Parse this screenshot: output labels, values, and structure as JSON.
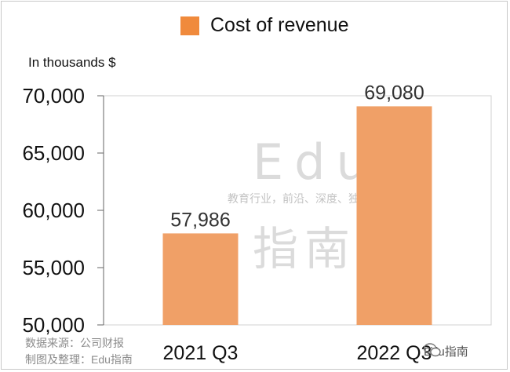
{
  "chart_data": {
    "type": "bar",
    "legend": [
      "Cost of revenue"
    ],
    "unit_label": "In thousands $",
    "categories": [
      "2021 Q3",
      "2022 Q3"
    ],
    "series": [
      {
        "name": "Cost of revenue",
        "values": [
          57986,
          69080
        ],
        "color": "#f0a067"
      }
    ],
    "data_labels": [
      "57,986",
      "69,080"
    ],
    "ylim": [
      50000,
      70000
    ],
    "yticks": [
      50000,
      55000,
      60000,
      65000,
      70000
    ],
    "ytick_labels": [
      "50,000",
      "55,000",
      "60,000",
      "65,000",
      "70,000"
    ],
    "legend_swatch_color": "#f08a3c",
    "grid": false,
    "legend_position": "top"
  },
  "watermark": {
    "big": "Edu",
    "sub": "教育行业，前沿、深度、独家",
    "cn": "指南"
  },
  "source_lines": [
    "数据来源：公司财报",
    "制图及整理：Edu指南"
  ],
  "brand": {
    "text": "Edu指南",
    "icon": "wechat-icon"
  }
}
